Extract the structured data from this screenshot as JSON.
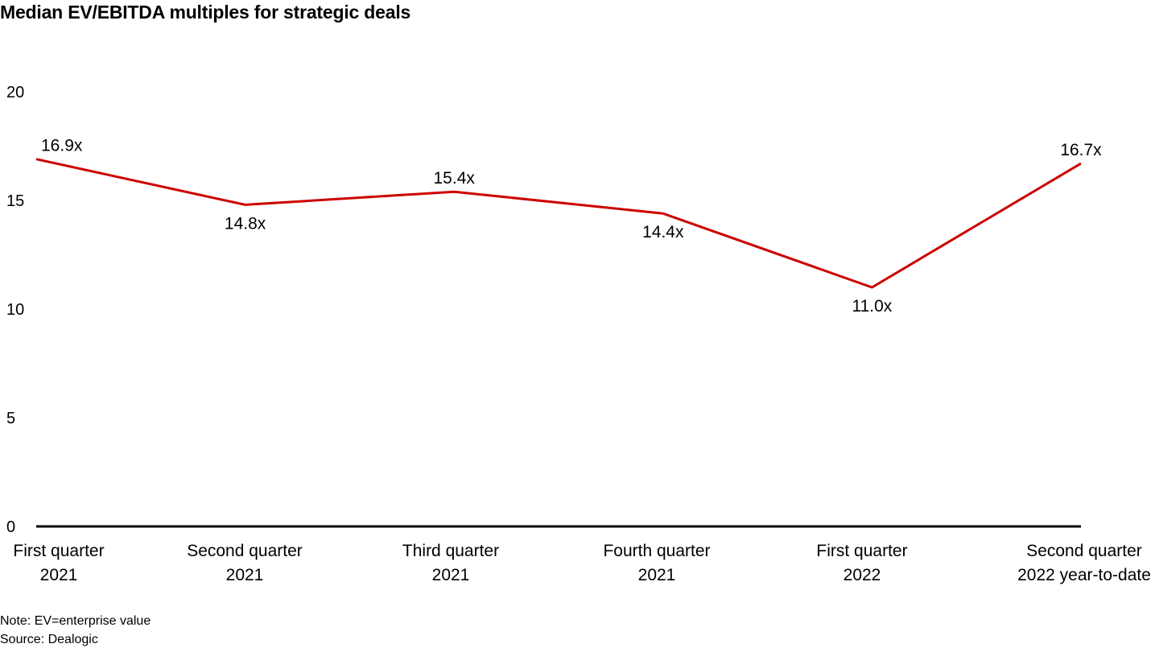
{
  "chart_data": {
    "type": "line",
    "title": "Median EV/EBITDA multiples for strategic deals",
    "xlabel": "",
    "ylabel": "",
    "categories": [
      [
        "First quarter",
        "2021"
      ],
      [
        "Second quarter",
        "2021"
      ],
      [
        "Third quarter",
        "2021"
      ],
      [
        "Fourth quarter",
        "2021"
      ],
      [
        "First quarter",
        "2022"
      ],
      [
        "Second quarter",
        "2022 year-to-date"
      ]
    ],
    "series": [
      {
        "name": "Median EV/EBITDA multiple",
        "values": [
          16.9,
          14.8,
          15.4,
          14.4,
          11.0,
          16.7
        ],
        "labels": [
          "16.9x",
          "14.8x",
          "15.4x",
          "14.4x",
          "11.0x",
          "16.7x"
        ],
        "label_positions": [
          "above",
          "below",
          "above",
          "below",
          "below",
          "above"
        ],
        "color": "#cc0000"
      }
    ],
    "ylim": [
      0,
      20
    ],
    "yticks": [
      0,
      5,
      10,
      15,
      20
    ],
    "grid": false,
    "legend": "none"
  },
  "notes": {
    "note": "Note: EV=enterprise value",
    "source": "Source: Dealogic"
  }
}
